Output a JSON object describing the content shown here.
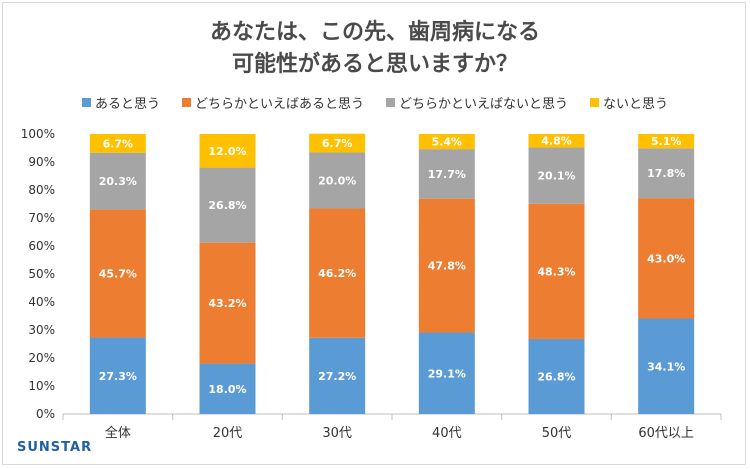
{
  "chart_data": {
    "type": "bar",
    "stacked": true,
    "normalized": true,
    "title_lines": [
      "あなたは、この先、歯周病になる",
      "可能性があると思いますか？"
    ],
    "categories": [
      "全体",
      "20代",
      "30代",
      "40代",
      "50代",
      "60代以上"
    ],
    "series": [
      {
        "name": "あると思う",
        "color": "#5b9bd5",
        "values": [
          27.3,
          18.0,
          27.2,
          29.1,
          26.8,
          34.1
        ]
      },
      {
        "name": "どちらかといえばあると思う",
        "color": "#ed7d31",
        "values": [
          45.7,
          43.2,
          46.2,
          47.8,
          48.3,
          43.0
        ]
      },
      {
        "name": "どちらかといえばないと思う",
        "color": "#a5a5a5",
        "values": [
          20.3,
          26.8,
          20.0,
          17.7,
          20.1,
          17.8
        ]
      },
      {
        "name": "ないと思う",
        "color": "#ffc000",
        "values": [
          6.7,
          12.0,
          6.7,
          5.4,
          4.8,
          5.1
        ]
      }
    ],
    "value_suffix": "%",
    "yticks": [
      "0%",
      "10%",
      "20%",
      "30%",
      "40%",
      "50%",
      "60%",
      "70%",
      "80%",
      "90%",
      "100%"
    ],
    "ylim": [
      0,
      100
    ],
    "legend_position": "top",
    "grid": false
  },
  "brand": "SUNSTAR"
}
